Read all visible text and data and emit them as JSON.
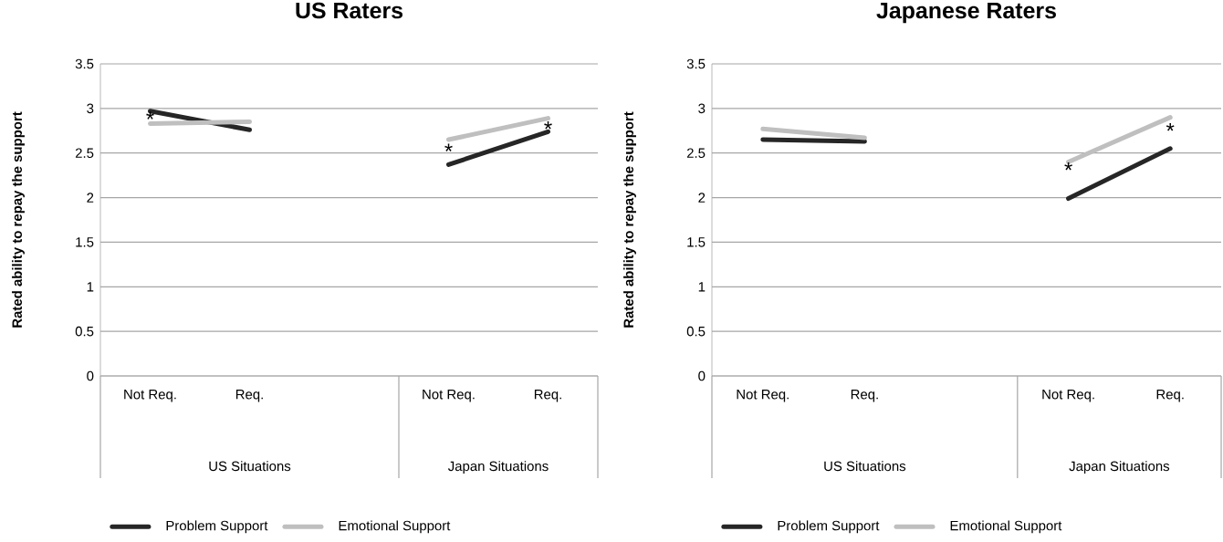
{
  "chart_data": [
    {
      "type": "line",
      "title": "US Raters",
      "ylabel": "Rated  ability to repay the support",
      "categories": [
        "Not Req.",
        "Req.",
        null,
        "Not Req.",
        "Req."
      ],
      "series": [
        {
          "name": "Problem Support",
          "color": "#262626",
          "values": [
            2.97,
            2.76,
            null,
            2.37,
            2.74
          ]
        },
        {
          "name": "Emotional Support",
          "color": "#bfbfbf",
          "values": [
            2.83,
            2.85,
            null,
            2.65,
            2.89
          ]
        }
      ],
      "ylim": [
        0,
        3.5
      ],
      "yticks": [
        0,
        0.5,
        1,
        1.5,
        2,
        2.5,
        3,
        3.5
      ],
      "grid": "y",
      "legend": "bottom",
      "annotations": [
        "US Situations",
        "Japan Situations",
        "*",
        "*",
        "*"
      ]
    },
    {
      "type": "line",
      "title": "Japanese Raters",
      "ylabel": "Rated  ability to repay the support",
      "categories": [
        "Not Req.",
        "Req.",
        null,
        "Not Req.",
        "Req."
      ],
      "series": [
        {
          "name": "Problem Support",
          "color": "#262626",
          "values": [
            2.65,
            2.63,
            null,
            1.99,
            2.55
          ]
        },
        {
          "name": "Emotional Support",
          "color": "#bfbfbf",
          "values": [
            2.77,
            2.67,
            null,
            2.4,
            2.9
          ]
        }
      ],
      "ylim": [
        0,
        3.5
      ],
      "yticks": [
        0,
        0.5,
        1,
        1.5,
        2,
        2.5,
        3,
        3.5
      ],
      "grid": "y",
      "legend": "bottom",
      "annotations": [
        "US Situations",
        "Japan Situations",
        "*",
        "*"
      ]
    }
  ]
}
